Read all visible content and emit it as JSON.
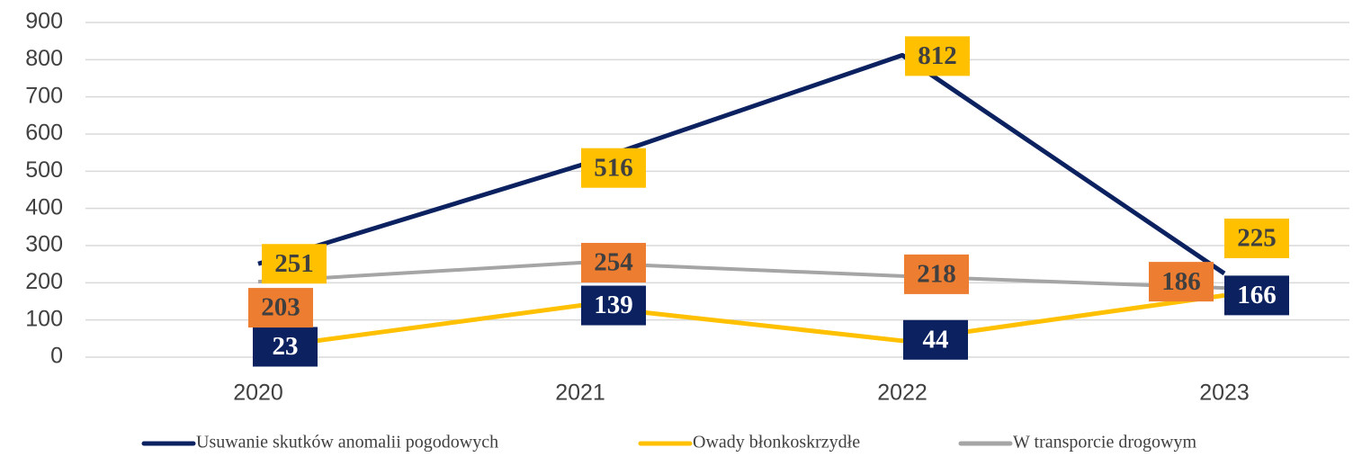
{
  "chart_data": {
    "type": "line",
    "categories": [
      "2020",
      "2021",
      "2022",
      "2023"
    ],
    "series": [
      {
        "name": "Usuwanie skutków anomalii pogodowych",
        "color": "#0c2260",
        "label_color": "#ffc000",
        "values": [
          251,
          516,
          812,
          225
        ]
      },
      {
        "name": "Owady błonkoskrzydłe",
        "color": "#ffc000",
        "label_color": "#0c2260",
        "values": [
          23,
          139,
          44,
          166
        ]
      },
      {
        "name": "W transporcie drogowym",
        "color": "#a5a5a5",
        "label_color": "#ed7d31",
        "values": [
          203,
          254,
          218,
          186
        ]
      }
    ],
    "ylim": [
      0,
      900
    ],
    "yticks": [
      0,
      100,
      200,
      300,
      400,
      500,
      600,
      700,
      800,
      900
    ],
    "grid": true,
    "legend": "bottom"
  }
}
